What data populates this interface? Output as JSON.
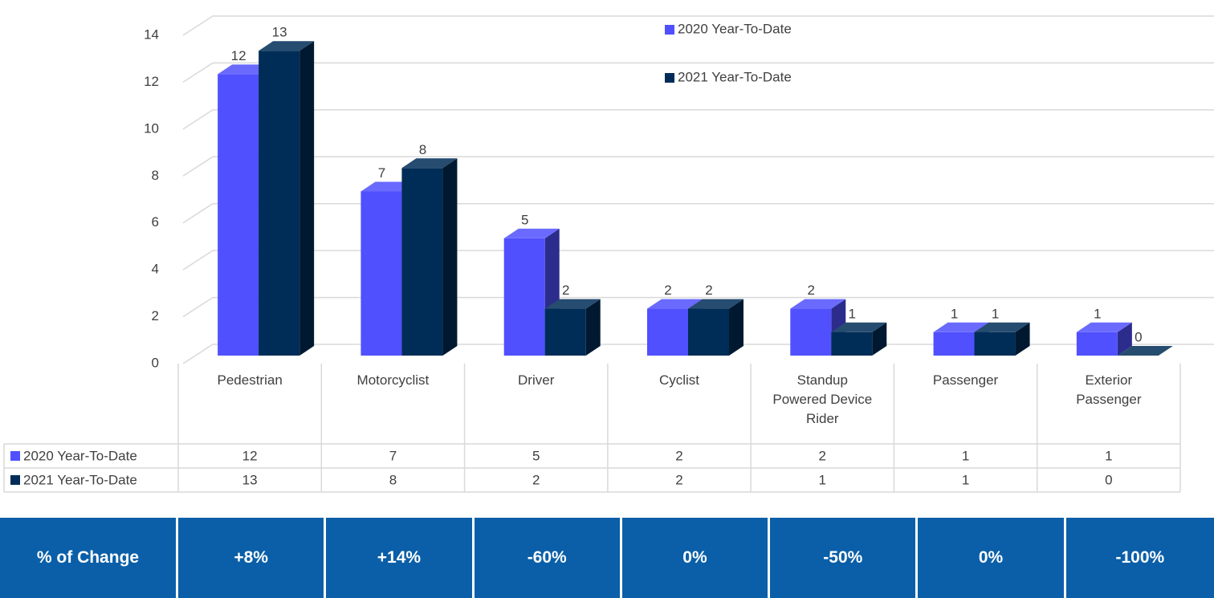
{
  "chart_data": {
    "type": "bar3d",
    "categories": [
      "Pedestrian",
      "Motorcyclist",
      "Driver",
      "Cyclist",
      "Standup Powered Device Rider",
      "Passenger",
      "Exterior Passenger"
    ],
    "series": [
      {
        "name": "2020 Year-To-Date",
        "color": "#5050ff",
        "values": [
          12,
          7,
          5,
          2,
          2,
          1,
          1
        ]
      },
      {
        "name": "2021 Year-To-Date",
        "color": "#002d57",
        "values": [
          13,
          8,
          2,
          2,
          1,
          1,
          0
        ]
      }
    ],
    "ylim": [
      0,
      14
    ],
    "yticks": [
      0,
      2,
      4,
      6,
      8,
      10,
      12,
      14
    ],
    "grid": true,
    "legend": "top"
  },
  "change_table": {
    "header": "% of Change",
    "values": [
      "+8%",
      "+14%",
      "-60%",
      "0%",
      "-50%",
      "0%",
      "-100%"
    ]
  }
}
